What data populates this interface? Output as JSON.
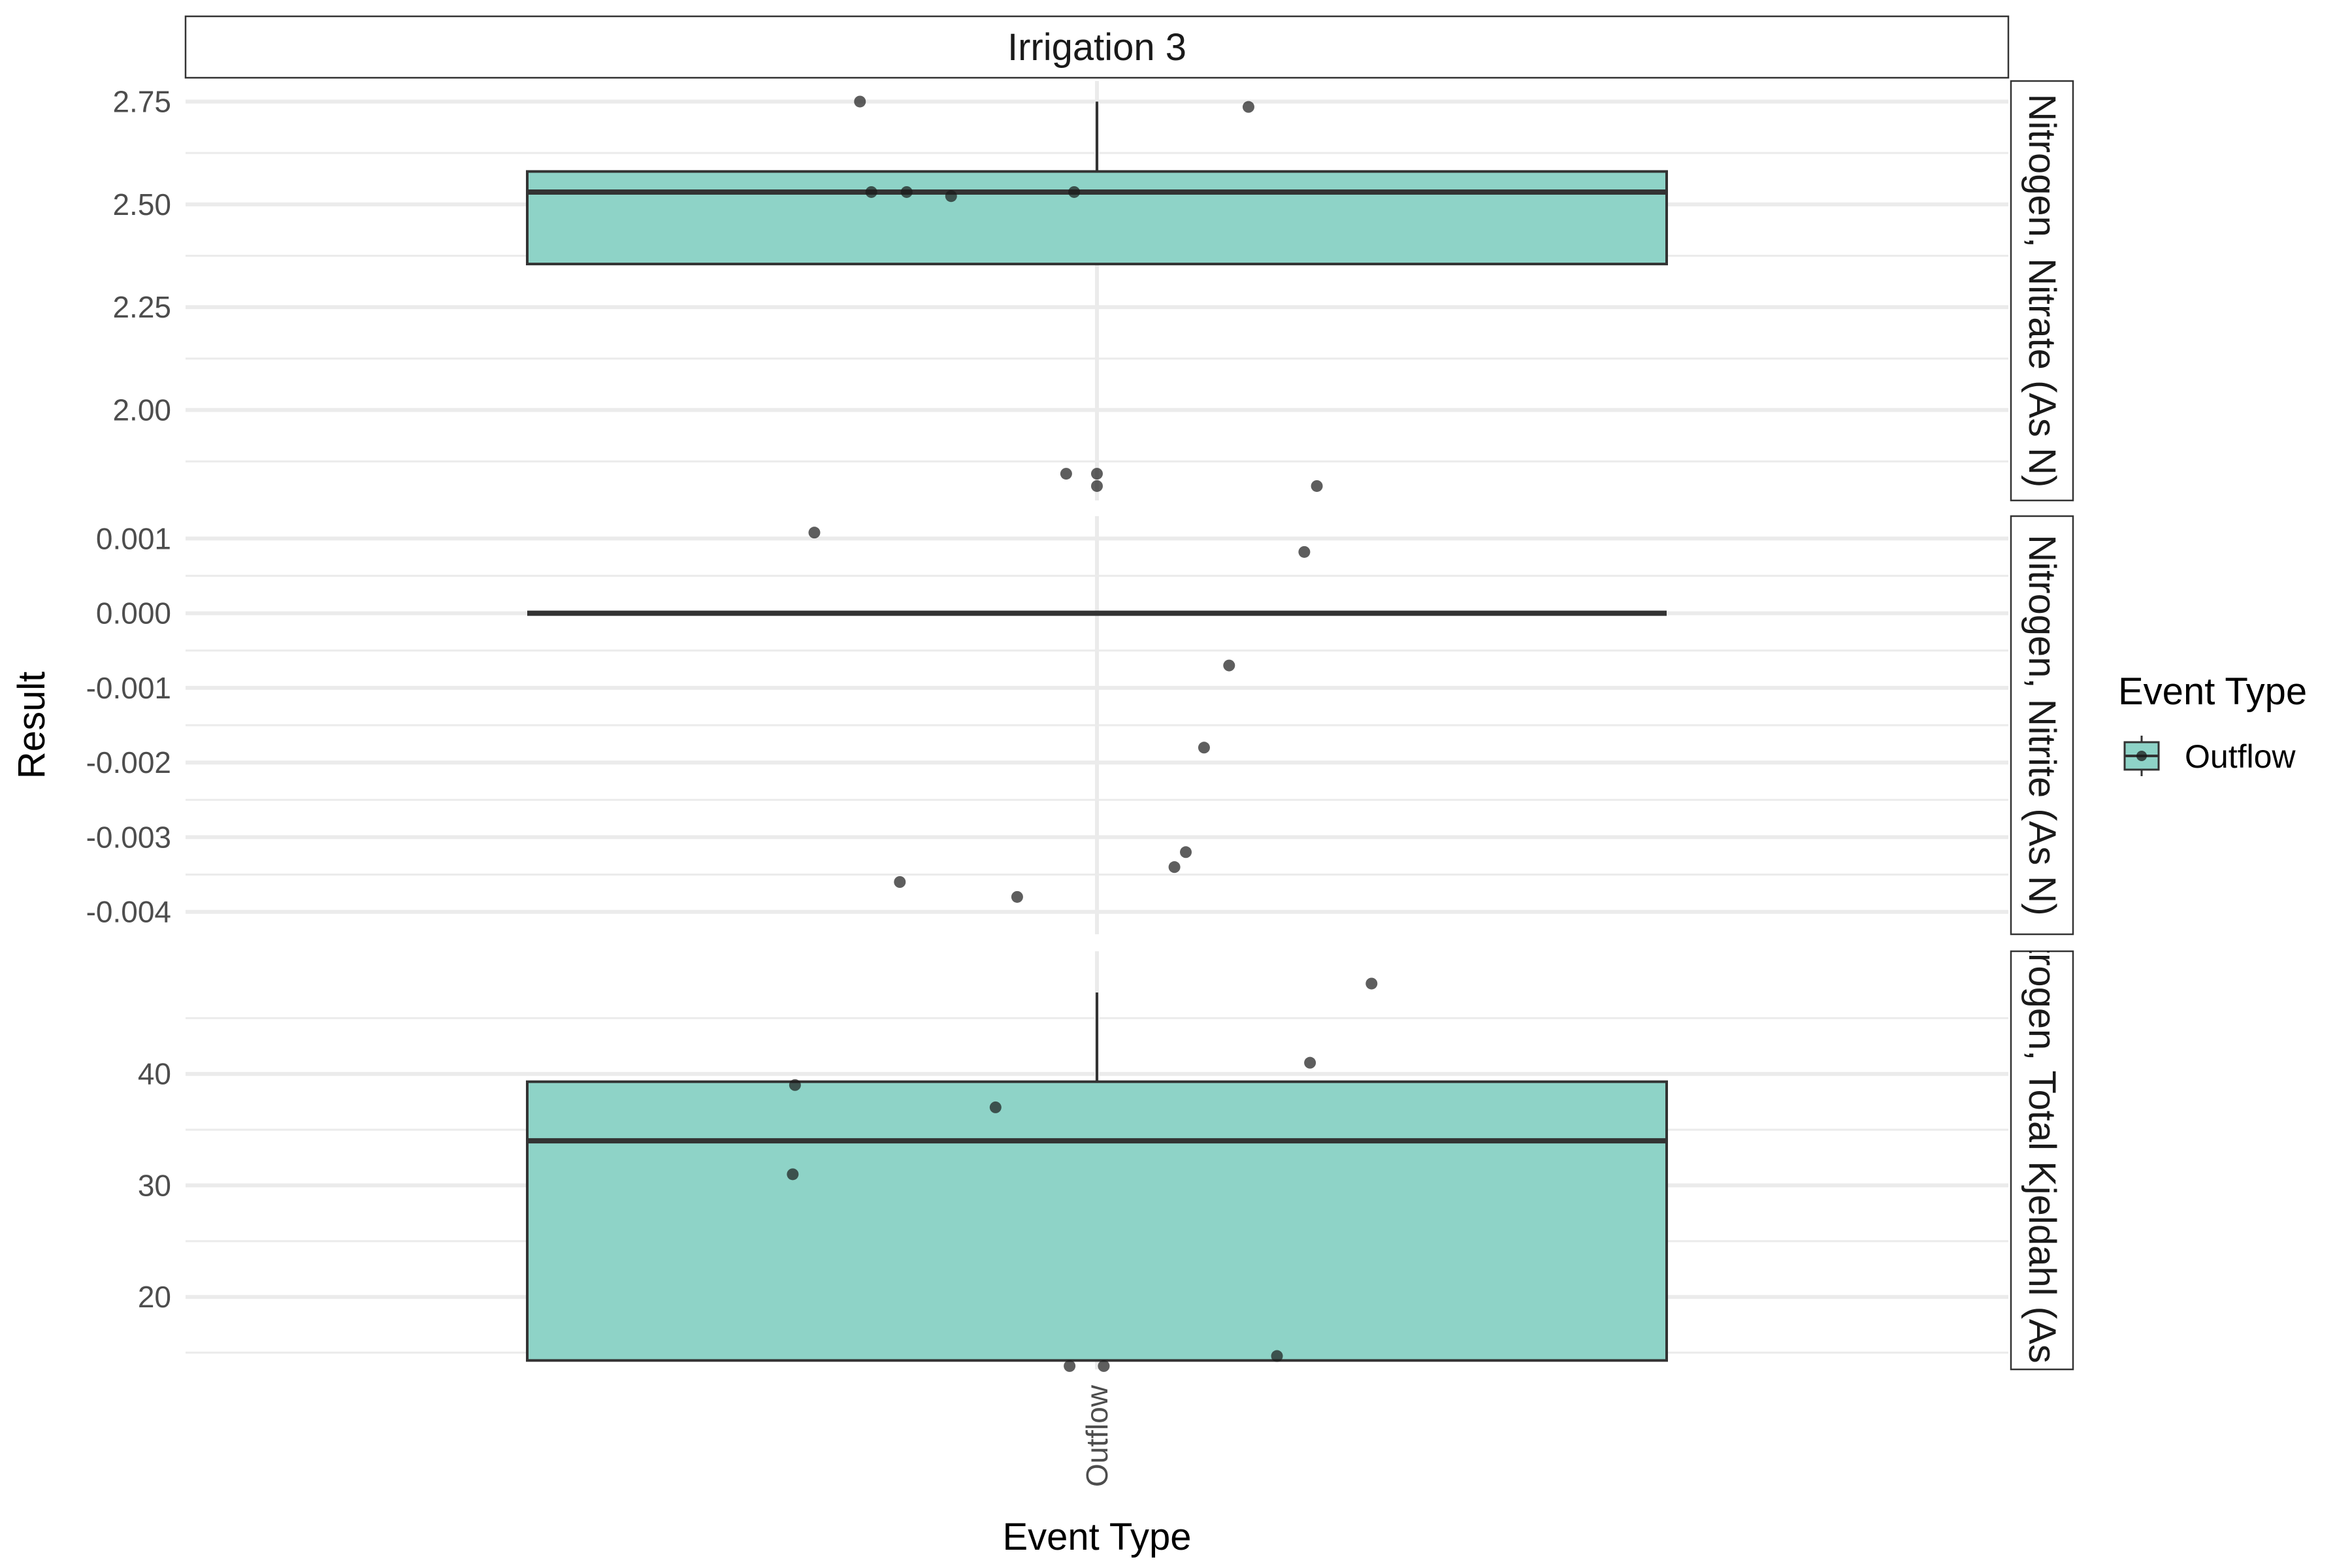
{
  "chart_data": {
    "type": "box",
    "title": "",
    "facet_column_label": "Irrigation 3",
    "xlabel": "Event Type",
    "ylabel": "Result",
    "categories": [
      "Outflow"
    ],
    "grid": true,
    "legend": {
      "title": "Event Type",
      "placement": "right",
      "entries": [
        {
          "label": "Outflow",
          "color": "#8ed3c7"
        }
      ]
    },
    "colors": {
      "fill": "#8ed3c7",
      "outline": "#333333",
      "points": "#1a1a1a",
      "grid": "#ebebeb"
    },
    "panels": [
      {
        "label": "Nitrogen, Nitrate (As N)",
        "ylim": [
          1.78,
          2.8
        ],
        "y_ticks": [
          2.0,
          2.25,
          2.5,
          2.75
        ],
        "y_tick_labels": [
          "2.00",
          "2.25",
          "2.50",
          "2.75"
        ],
        "y_minor_ticks": [
          1.875,
          2.125,
          2.375,
          2.625
        ],
        "box": {
          "q1": 2.355,
          "median": 2.53,
          "q3": 2.58,
          "whisker_low": 2.355,
          "whisker_high": 2.75
        },
        "points": [
          {
            "x": -0.208,
            "y": 2.75
          },
          {
            "x": 0.133,
            "y": 2.737
          },
          {
            "x": -0.198,
            "y": 2.53
          },
          {
            "x": -0.167,
            "y": 2.53
          },
          {
            "x": -0.128,
            "y": 2.52
          },
          {
            "x": -0.02,
            "y": 2.53
          },
          {
            "x": -0.027,
            "y": 1.845
          },
          {
            "x": 0.0,
            "y": 1.845
          },
          {
            "x": 0.0,
            "y": 1.815
          },
          {
            "x": 0.193,
            "y": 1.815
          }
        ]
      },
      {
        "label": "Nitrogen, Nitrite (As N)",
        "ylim": [
          -0.0043,
          0.0013
        ],
        "y_ticks": [
          -0.004,
          -0.003,
          -0.002,
          -0.001,
          0.0,
          0.001
        ],
        "y_tick_labels": [
          "-0.004",
          "-0.003",
          "-0.002",
          "-0.001",
          "0.000",
          "0.001"
        ],
        "y_minor_ticks": [
          -0.0035,
          -0.0025,
          -0.0015,
          -0.0005,
          0.0005
        ],
        "box": {
          "q1": 0.0,
          "median": 0.0,
          "q3": 0.0,
          "whisker_low": 0.0,
          "whisker_high": 0.0
        },
        "points": [
          {
            "x": -0.248,
            "y": 0.00108
          },
          {
            "x": 0.182,
            "y": 0.00082
          },
          {
            "x": 0.116,
            "y": -0.0007
          },
          {
            "x": 0.094,
            "y": -0.0018
          },
          {
            "x": 0.078,
            "y": -0.0032
          },
          {
            "x": 0.068,
            "y": -0.0034
          },
          {
            "x": -0.173,
            "y": -0.0036
          },
          {
            "x": -0.07,
            "y": -0.0038
          }
        ]
      },
      {
        "label": "Nitrogen, Total Kjeldahl (As N)",
        "ylim": [
          13.5,
          51.0
        ],
        "y_ticks": [
          20,
          30,
          40
        ],
        "y_tick_labels": [
          "20",
          "30",
          "40"
        ],
        "y_minor_ticks": [
          15,
          25,
          35,
          45
        ],
        "box": {
          "q1": 14.3,
          "median": 34.0,
          "q3": 39.3,
          "whisker_low": 14.3,
          "whisker_high": 47.3
        },
        "points": [
          {
            "x": 0.241,
            "y": 48.1
          },
          {
            "x": 0.187,
            "y": 41.0
          },
          {
            "x": -0.265,
            "y": 39.0
          },
          {
            "x": -0.089,
            "y": 37.0
          },
          {
            "x": -0.267,
            "y": 31.0
          },
          {
            "x": 0.158,
            "y": 14.7
          },
          {
            "x": -0.024,
            "y": 13.8
          },
          {
            "x": 0.006,
            "y": 13.8
          }
        ]
      }
    ]
  }
}
